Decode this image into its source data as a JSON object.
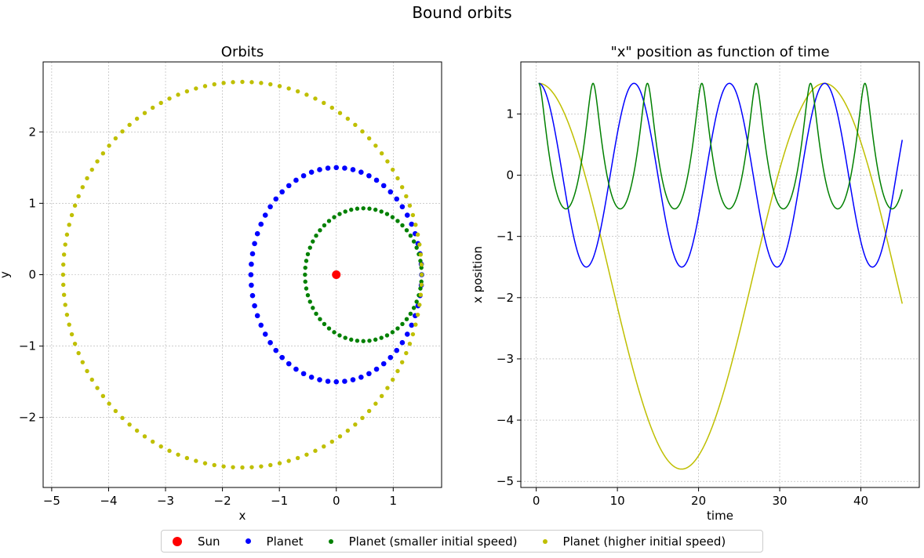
{
  "suptitle": "Bound orbits",
  "colors": {
    "sun": "#ff0000",
    "planet": "#0000ff",
    "smaller": "#008000",
    "higher": "#bfbf00"
  },
  "legend": {
    "items": [
      {
        "label": "Sun",
        "color": "#ff0000",
        "marker": "large-dot"
      },
      {
        "label": "Planet",
        "color": "#0000ff",
        "marker": "dot"
      },
      {
        "label": "Planet (smaller initial speed)",
        "color": "#008000",
        "marker": "small-dot"
      },
      {
        "label": "Planet (higher initial speed)",
        "color": "#bfbf00",
        "marker": "small-dot"
      }
    ]
  },
  "chart_data": [
    {
      "type": "scatter",
      "title": "Orbits",
      "xlabel": "x",
      "ylabel": "y",
      "xlim": [
        -5.15,
        1.85
      ],
      "ylim": [
        -2.98,
        2.98
      ],
      "xticks": [
        -5,
        -4,
        -3,
        -2,
        -1,
        0,
        1
      ],
      "yticks": [
        -2,
        -1,
        0,
        1,
        2
      ],
      "grid": true,
      "series": [
        {
          "name": "Sun",
          "color": "#ff0000",
          "points": [
            [
              0,
              0
            ]
          ]
        },
        {
          "name": "Planet",
          "color": "#0000ff",
          "orbit": {
            "center": [
              0,
              0
            ],
            "radius": 1.5
          },
          "point_count": 64
        },
        {
          "name": "Planet (smaller initial speed)",
          "color": "#008000",
          "orbit": {
            "perihelion": -0.55,
            "aphelion": 1.5,
            "semi_minor": 0.93
          },
          "point_count": 60
        },
        {
          "name": "Planet (higher initial speed)",
          "color": "#bfbf00",
          "orbit": {
            "perihelion": 1.5,
            "aphelion": -4.8,
            "semi_minor": 2.7
          },
          "point_count": 120
        }
      ]
    },
    {
      "type": "line",
      "title": "\"x\" position as function of time",
      "xlabel": "time",
      "ylabel": "x position",
      "xlim": [
        -1.9,
        47.2
      ],
      "ylim": [
        -5.1,
        1.85
      ],
      "xticks": [
        0,
        10,
        20,
        30,
        40
      ],
      "yticks": [
        -5,
        -4,
        -3,
        -2,
        -1,
        0,
        1
      ],
      "grid": true,
      "t_range": [
        0.3,
        45.1
      ],
      "series": [
        {
          "name": "Planet",
          "color": "#0000ff",
          "amplitude": 1.5,
          "period": 11.75
        },
        {
          "name": "Planet (smaller initial speed)",
          "color": "#008000",
          "x_max": 1.5,
          "x_min": -0.55,
          "period": 6.7
        },
        {
          "name": "Planet (higher initial speed)",
          "color": "#bfbf00",
          "x_max": 1.5,
          "x_min": -4.8,
          "period": 35.2
        }
      ]
    }
  ]
}
